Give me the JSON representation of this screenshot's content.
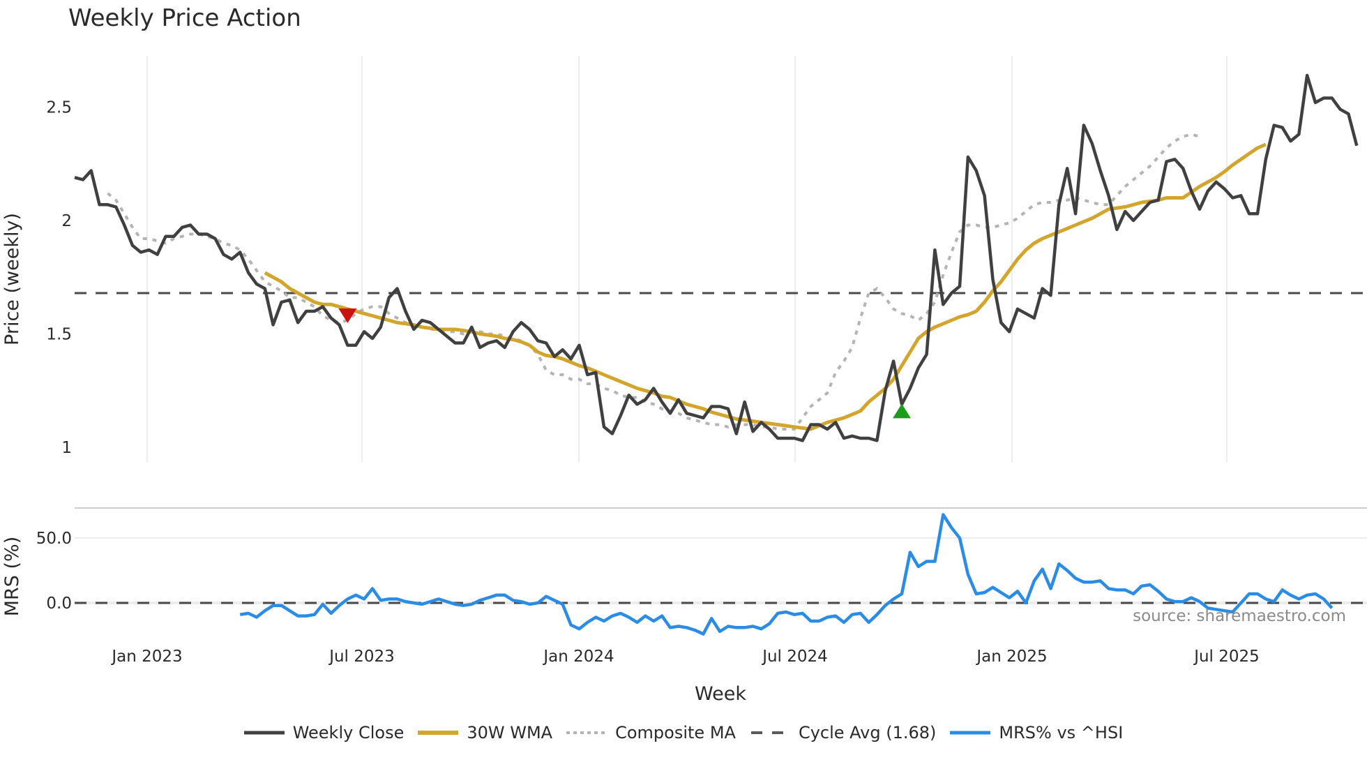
{
  "chart_data": {
    "type": "line",
    "title": "Weekly Price Action",
    "xlabel": "Week",
    "x_tick_labels": [
      "Jan 2023",
      "Jul 2023",
      "Jan 2024",
      "Jul 2024",
      "Jan 2025",
      "Jul 2025"
    ],
    "panels": [
      {
        "name": "price",
        "ylabel": "Price (weekly)",
        "y_ticks": [
          1,
          1.5,
          2,
          2.5
        ],
        "y_tick_labels": [
          "1",
          "1.5",
          "2",
          "2.5"
        ],
        "ylim": [
          0.96,
          2.72
        ],
        "series": [
          {
            "name": "Weekly Close",
            "color": "#404040",
            "style": "solid",
            "start_index": 0,
            "values": [
              2.19,
              2.18,
              2.22,
              2.07,
              2.07,
              2.06,
              1.98,
              1.89,
              1.86,
              1.87,
              1.85,
              1.93,
              1.93,
              1.97,
              1.98,
              1.94,
              1.94,
              1.92,
              1.85,
              1.83,
              1.86,
              1.77,
              1.72,
              1.7,
              1.54,
              1.64,
              1.65,
              1.55,
              1.6,
              1.6,
              1.62,
              1.57,
              1.54,
              1.45,
              1.45,
              1.51,
              1.48,
              1.53,
              1.66,
              1.7,
              1.6,
              1.52,
              1.56,
              1.55,
              1.52,
              1.49,
              1.46,
              1.46,
              1.53,
              1.44,
              1.46,
              1.47,
              1.44,
              1.51,
              1.55,
              1.52,
              1.47,
              1.46,
              1.4,
              1.43,
              1.39,
              1.45,
              1.32,
              1.33,
              1.09,
              1.06,
              1.14,
              1.23,
              1.19,
              1.21,
              1.26,
              1.2,
              1.15,
              1.21,
              1.15,
              1.14,
              1.13,
              1.18,
              1.18,
              1.17,
              1.06,
              1.2,
              1.07,
              1.11,
              1.08,
              1.04,
              1.04,
              1.04,
              1.03,
              1.1,
              1.1,
              1.08,
              1.11,
              1.04,
              1.05,
              1.04,
              1.04,
              1.03,
              1.25,
              1.38,
              1.19,
              1.26,
              1.35,
              1.41,
              1.87,
              1.63,
              1.68,
              1.71,
              2.28,
              2.22,
              2.11,
              1.74,
              1.55,
              1.51,
              1.61,
              1.59,
              1.57,
              1.7,
              1.67,
              2.07,
              2.23,
              2.03,
              2.42,
              2.34,
              2.22,
              2.11,
              1.96,
              2.04,
              2.0,
              2.04,
              2.08,
              2.09,
              2.26,
              2.27,
              2.23,
              2.13,
              2.05,
              2.13,
              2.17,
              2.14,
              2.1,
              2.11,
              2.03,
              2.03,
              2.27,
              2.42,
              2.41,
              2.35,
              2.38,
              2.64,
              2.52,
              2.54,
              2.54,
              2.49,
              2.47,
              2.33
            ]
          },
          {
            "name": "30W WMA",
            "color": "#d4a52c",
            "style": "solid",
            "start_index": 23,
            "values": [
              1.77,
              1.75,
              1.73,
              1.7,
              1.68,
              1.66,
              1.64,
              1.63,
              1.63,
              1.62,
              1.61,
              1.6,
              1.59,
              1.58,
              1.57,
              1.56,
              1.55,
              1.545,
              1.54,
              1.53,
              1.525,
              1.52,
              1.52,
              1.52,
              1.515,
              1.51,
              1.5,
              1.495,
              1.49,
              1.48,
              1.475,
              1.465,
              1.45,
              1.42,
              1.405,
              1.4,
              1.39,
              1.375,
              1.36,
              1.35,
              1.335,
              1.32,
              1.305,
              1.29,
              1.275,
              1.26,
              1.25,
              1.24,
              1.225,
              1.22,
              1.205,
              1.19,
              1.18,
              1.17,
              1.155,
              1.145,
              1.135,
              1.125,
              1.12,
              1.115,
              1.11,
              1.105,
              1.1,
              1.095,
              1.09,
              1.085,
              1.08,
              1.095,
              1.11,
              1.12,
              1.13,
              1.145,
              1.16,
              1.2,
              1.23,
              1.26,
              1.3,
              1.36,
              1.42,
              1.48,
              1.51,
              1.53,
              1.545,
              1.56,
              1.575,
              1.585,
              1.6,
              1.64,
              1.69,
              1.73,
              1.78,
              1.83,
              1.87,
              1.9,
              1.92,
              1.935,
              1.95,
              1.965,
              1.98,
              1.995,
              2.01,
              2.03,
              2.05,
              2.055,
              2.06,
              2.07,
              2.08,
              2.085,
              2.09,
              2.1,
              2.1,
              2.1,
              2.125,
              2.15,
              2.17,
              2.19,
              2.215,
              2.245,
              2.27,
              2.295,
              2.32,
              2.335
            ]
          },
          {
            "name": "Composite MA",
            "color": "#b4b4b4",
            "style": "dotted",
            "start_index": 4,
            "values": [
              2.12,
              2.09,
              2.03,
              1.97,
              1.92,
              1.92,
              1.91,
              1.9,
              1.92,
              1.93,
              1.94,
              1.94,
              1.93,
              1.92,
              1.9,
              1.89,
              1.87,
              1.83,
              1.78,
              1.73,
              1.71,
              1.69,
              1.66,
              1.66,
              1.64,
              1.62,
              1.58,
              1.56,
              1.55,
              1.56,
              1.59,
              1.61,
              1.62,
              1.62,
              1.59,
              1.57,
              1.55,
              1.54,
              1.53,
              1.52,
              1.52,
              1.51,
              1.51,
              1.5,
              1.51,
              1.51,
              1.5,
              1.5,
              1.49,
              1.48,
              1.47,
              1.45,
              1.41,
              1.34,
              1.32,
              1.32,
              1.3,
              1.3,
              1.28,
              1.28,
              1.26,
              1.25,
              1.23,
              1.22,
              1.22,
              1.2,
              1.19,
              1.17,
              1.16,
              1.15,
              1.13,
              1.12,
              1.11,
              1.1,
              1.1,
              1.09,
              1.1,
              1.1,
              1.1,
              1.09,
              1.09,
              1.08,
              1.08,
              1.08,
              1.13,
              1.18,
              1.21,
              1.24,
              1.33,
              1.38,
              1.44,
              1.57,
              1.68,
              1.7,
              1.66,
              1.61,
              1.59,
              1.58,
              1.56,
              1.59,
              1.64,
              1.76,
              1.86,
              1.95,
              1.98,
              1.98,
              1.97,
              1.97,
              1.98,
              1.99,
              2.01,
              2.04,
              2.07,
              2.08,
              2.08,
              2.09,
              2.09,
              2.1,
              2.09,
              2.08,
              2.07,
              2.07,
              2.11,
              2.15,
              2.18,
              2.21,
              2.24,
              2.28,
              2.32,
              2.35,
              2.37,
              2.38,
              2.37
            ]
          },
          {
            "name": "Cycle Avg (1.68)",
            "color": "#4a4a4a",
            "style": "dashed",
            "constant": 1.68
          }
        ],
        "markers": [
          {
            "type": "sell",
            "shape": "triangle-down",
            "color": "#cc1111",
            "index": 33,
            "value": 1.58
          },
          {
            "type": "buy",
            "shape": "triangle-up",
            "color": "#1a9e1a",
            "index": 100,
            "value": 1.16
          }
        ]
      },
      {
        "name": "mrs",
        "ylabel": "MRS (%)",
        "y_ticks": [
          0,
          50
        ],
        "y_tick_labels": [
          "0.0",
          "50.0"
        ],
        "ylim": [
          -30,
          78
        ],
        "series": [
          {
            "name": "MRS% vs ^HSI",
            "color": "#2b8ce6",
            "style": "solid",
            "start_index": 20,
            "values": [
              -9,
              -8,
              -11,
              -6,
              -2,
              -2,
              -6,
              -10,
              -10,
              -9,
              -1,
              -8,
              -2,
              3,
              6,
              3,
              11,
              2,
              3,
              3,
              1,
              0,
              -1,
              1,
              3,
              1,
              -1,
              -2,
              -1,
              2,
              4,
              6,
              6,
              2,
              1,
              -1,
              0,
              5,
              2,
              -1,
              -17,
              -20,
              -15,
              -11,
              -14,
              -10,
              -8,
              -11,
              -15,
              -10,
              -14,
              -10,
              -19,
              -18,
              -19,
              -21,
              -24,
              -12,
              -22,
              -18,
              -19,
              -19,
              -18,
              -20,
              -16,
              -8,
              -7,
              -9,
              -8,
              -14,
              -14,
              -11,
              -10,
              -15,
              -9,
              -8,
              -15,
              -9,
              -2,
              3,
              7,
              39,
              28,
              32,
              32,
              68,
              58,
              50,
              22,
              7,
              8,
              12,
              8,
              4,
              9,
              0,
              17,
              26,
              11,
              30,
              25,
              19,
              16,
              16,
              17,
              11,
              10,
              10,
              7,
              13,
              14,
              9,
              3,
              1,
              1,
              4,
              1,
              -4,
              -5,
              -6,
              -7,
              0,
              7,
              7,
              3,
              1,
              10,
              6,
              3,
              6,
              7,
              3,
              -4
            ]
          },
          {
            "name": "zero line",
            "color": "#4a4a4a",
            "style": "dashed",
            "constant": 0
          }
        ]
      }
    ],
    "legend": {
      "position": "bottom",
      "entries": [
        {
          "label": "Weekly Close",
          "color": "#404040",
          "style": "solid"
        },
        {
          "label": "30W WMA",
          "color": "#d4a52c",
          "style": "solid"
        },
        {
          "label": "Composite MA",
          "color": "#b4b4b4",
          "style": "dotted"
        },
        {
          "label": "Cycle Avg (1.68)",
          "color": "#5a5a5a",
          "style": "dashed"
        },
        {
          "label": "MRS% vs ^HSI",
          "color": "#2b8ce6",
          "style": "solid"
        }
      ]
    },
    "annotation": "source: sharemaestro.com",
    "grid": {
      "x": true,
      "y": false
    }
  },
  "title": "Weekly Price Action",
  "xlabel": "Week",
  "ylabel_price": "Price (weekly)",
  "ylabel_mrs": "MRS (%)",
  "source": "source: sharemaestro.com",
  "legend": {
    "item0": "Weekly Close",
    "item1": "30W WMA",
    "item2": "Composite MA",
    "item3": "Cycle Avg (1.68)",
    "item4": "MRS% vs ^HSI"
  }
}
